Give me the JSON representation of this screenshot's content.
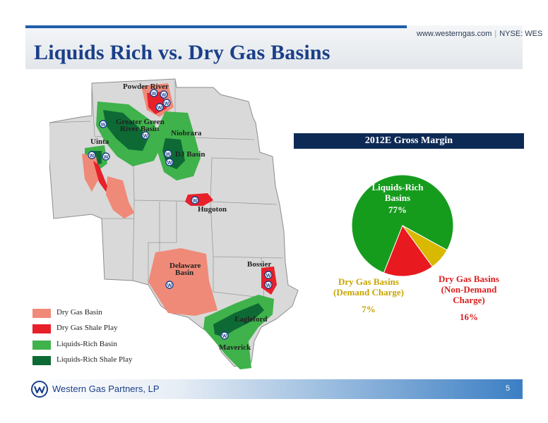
{
  "header": {
    "site": "www.westerngas.com",
    "ticker": "NYSE: WES",
    "title": "Liquids Rich vs. Dry Gas Basins"
  },
  "map": {
    "basins": {
      "powder_river": "Powder River",
      "greater_green_river_1": "Greater Green",
      "greater_green_river_2": "River Basin",
      "niobrara": "Niobrara",
      "uinta": "Uinta",
      "dj_basin": "DJ Basin",
      "hugoton": "Hugoton",
      "delaware_1": "Delaware",
      "delaware_2": "Basin",
      "bossier": "Bossier",
      "eagleford": "Eagleford",
      "maverick": "Maverick"
    },
    "marker_letter": "W",
    "legend": [
      {
        "label": "Dry Gas Basin",
        "color": "#f08a78"
      },
      {
        "label": "Dry Gas Shale Play",
        "color": "#e8202a"
      },
      {
        "label": "Liquids-Rich Basin",
        "color": "#3fb24b"
      },
      {
        "label": "Liquids-Rich Shale Play",
        "color": "#0d6a35"
      }
    ]
  },
  "gross_margin": {
    "title": "2012E Gross Margin",
    "slices": [
      {
        "name": "Liquids-Rich Basins",
        "line1": "Liquids-Rich",
        "line2": "Basins",
        "percent": "77%",
        "value": 77,
        "color": "#169c1d"
      },
      {
        "name": "Dry Gas Basins (Demand Charge)",
        "line1": "Dry Gas Basins",
        "line2": "(Demand Charge)",
        "percent": "7%",
        "value": 7,
        "color": "#d9b800"
      },
      {
        "name": "Dry Gas Basins (Non-Demand Charge)",
        "line1": "Dry Gas Basins",
        "line2": "(Non-Demand",
        "line3": "Charge)",
        "percent": "16%",
        "value": 16,
        "color": "#e8191f"
      }
    ]
  },
  "footer": {
    "company": "Western Gas Partners, LP",
    "page": "5"
  },
  "colors": {
    "brand_blue": "#1a3f8a",
    "banner_navy": "#0d2a55"
  }
}
